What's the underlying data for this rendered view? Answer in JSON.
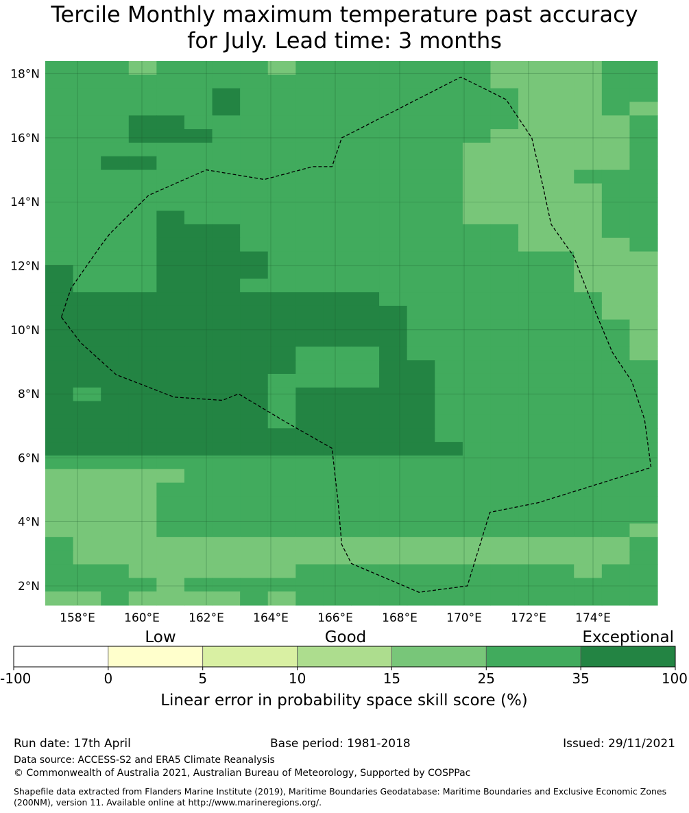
{
  "title_line1": "Tercile Monthly maximum temperature past accuracy",
  "title_line2": "for July. Lead time: 3 months",
  "map": {
    "lon_min": 157.0,
    "lon_max": 176.0,
    "lat_min": 1.4,
    "lat_max": 18.4,
    "cell_size_deg": 0.833,
    "x_ticks": [
      {
        "value": 158,
        "label": "158°E"
      },
      {
        "value": 160,
        "label": "160°E"
      },
      {
        "value": 162,
        "label": "162°E"
      },
      {
        "value": 164,
        "label": "164°E"
      },
      {
        "value": 166,
        "label": "166°E"
      },
      {
        "value": 168,
        "label": "168°E"
      },
      {
        "value": 170,
        "label": "170°E"
      },
      {
        "value": 172,
        "label": "172°E"
      },
      {
        "value": 174,
        "label": "174°E"
      }
    ],
    "y_ticks": [
      {
        "value": 2,
        "label": "2°N"
      },
      {
        "value": 4,
        "label": "4°N"
      },
      {
        "value": 6,
        "label": "6°N"
      },
      {
        "value": 8,
        "label": "8°N"
      },
      {
        "value": 10,
        "label": "10°N"
      },
      {
        "value": 12,
        "label": "12°N"
      },
      {
        "value": 14,
        "label": "14°N"
      },
      {
        "value": 16,
        "label": "16°N"
      },
      {
        "value": 18,
        "label": "18°N"
      }
    ],
    "grid_rows_north_to_south": [
      "5554555545555555444455",
      "5555555555555555444455",
      "5555556555555555544455",
      "5555556555555555544454",
      "5556655555555555544445",
      "5556665555555555444445",
      "5555555555555554444445",
      "5566555555555554444445",
      "5555555555555554444555",
      "5555555555555554444455",
      "5555555555555554444455",
      "5555655555555554444455",
      "5555666555555555544455",
      "5555666555555555544445",
      "5555666655555555555444",
      "6555666655555555555444",
      "6555666555555555555444",
      "6666666666665555555544",
      "6666666666666555555544",
      "6666666666666555555554",
      "6666666666666555555554",
      "6666666665556555555554",
      "6666666665556655555555",
      "6666666655556655555555",
      "6566666656666655555555",
      "6666666656666655555555",
      "6666666656666655555555",
      "6666666666666655555555",
      "6666666666666665555555",
      "5555555555555555555555",
      "4444455555555555555555",
      "4444555555555555555555",
      "4444555555555555555555",
      "4444555555555555555555",
      "4444555555555555555554",
      "5444444444444444444445",
      "5444444444444444444445",
      "5554444445555555555455",
      "5555455555555555555555",
      "4454444545555555555555"
    ],
    "palette": [
      "#ffffff",
      "#ffffcc",
      "#d9f0a3",
      "#addd8e",
      "#78c679",
      "#41ab5d",
      "#238443"
    ],
    "eez_boundary": [
      [
        157.5,
        10.4
      ],
      [
        158.1,
        9.6
      ],
      [
        159.2,
        8.6
      ],
      [
        161,
        7.9
      ],
      [
        162.5,
        7.8
      ],
      [
        163,
        8.0
      ],
      [
        164.5,
        7.1
      ],
      [
        165.9,
        6.3
      ],
      [
        166.1,
        4.5
      ],
      [
        166.2,
        3.3
      ],
      [
        166.5,
        2.7
      ],
      [
        168.6,
        1.8
      ],
      [
        170.1,
        2.0
      ],
      [
        170.8,
        4.3
      ],
      [
        172.3,
        4.6
      ],
      [
        175.8,
        5.7
      ],
      [
        175.6,
        7.2
      ],
      [
        175.2,
        8.4
      ],
      [
        174.6,
        9.3
      ],
      [
        174.1,
        10.5
      ],
      [
        173.4,
        12.3
      ],
      [
        172.7,
        13.3
      ],
      [
        172.4,
        14.7
      ],
      [
        172.1,
        16.0
      ],
      [
        171.3,
        17.2
      ],
      [
        169.9,
        17.9
      ],
      [
        166.2,
        16.0
      ],
      [
        165.9,
        15.1
      ],
      [
        165.3,
        15.1
      ],
      [
        163.8,
        14.7
      ],
      [
        162,
        15.0
      ],
      [
        160.2,
        14.2
      ],
      [
        159,
        13.0
      ],
      [
        158.7,
        12.6
      ],
      [
        157.8,
        11.3
      ],
      [
        157.5,
        10.4
      ]
    ]
  },
  "colorbar": {
    "category_labels": [
      "Low",
      "Good",
      "Exceptional"
    ],
    "bin_colors": [
      "#ffffff",
      "#ffffcc",
      "#d9f0a3",
      "#addd8e",
      "#78c679",
      "#41ab5d",
      "#238443"
    ],
    "tick_labels": [
      "-100",
      "0",
      "5",
      "10",
      "15",
      "25",
      "35",
      "100"
    ],
    "axis_label": "Linear error in probability space skill score (%)"
  },
  "footer": {
    "run_date": "Run date: 17th April",
    "base_period": "Base period: 1981-2018",
    "issued": "Issued: 29/11/2021",
    "data_source": "Data source: ACCESS-S2 and ERA5 Climate Reanalysis",
    "copyright": "© Commonwealth of Australia 2021, Australian Bureau of Meteorology, Supported by COSPPac",
    "shapefile_note": "Shapefile data extracted from Flanders Marine Institute (2019), Maritime Boundaries Geodatabase: Maritime Boundaries and Exclusive Economic Zones (200NM), version 11. Available online at http://www.marineregions.org/."
  }
}
